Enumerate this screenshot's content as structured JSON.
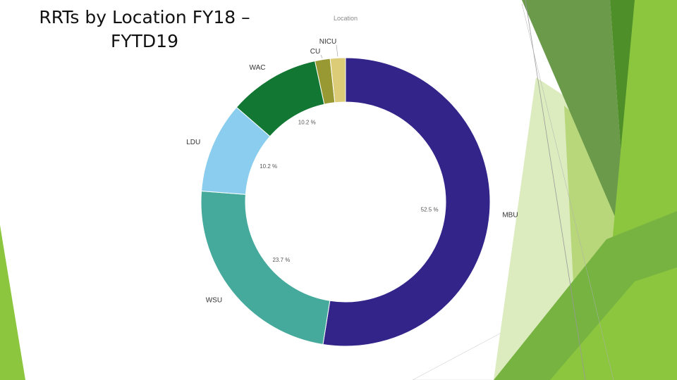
{
  "slide": {
    "title_line1": "RRTs by Location FY18 –",
    "title_line2": "FYTD19"
  },
  "chart_data": {
    "type": "pie",
    "donut": true,
    "legend_title": "Location",
    "categories": [
      "MBU",
      "WSU",
      "LDU",
      "WAC",
      "CU",
      "NICU"
    ],
    "values": [
      52.5,
      23.7,
      10.2,
      10.2,
      1.7,
      1.7
    ],
    "value_labels": [
      "52.5 %",
      "23.7 %",
      "10.2 %",
      "10.2 %",
      "",
      ""
    ],
    "colors": [
      "#33248a",
      "#45aa9c",
      "#8acdee",
      "#117733",
      "#999933",
      "#ddcc77"
    ]
  },
  "theme": {
    "accent_colors": [
      "#8cc63f",
      "#6aa84f",
      "#4e8f2a",
      "#b7d77a",
      "#dcecbf"
    ]
  }
}
